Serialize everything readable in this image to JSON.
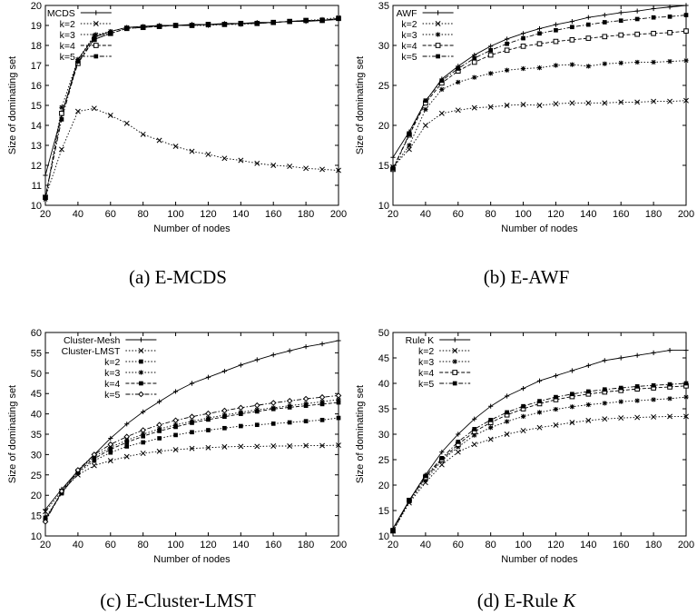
{
  "chart_data": [
    {
      "type": "line",
      "caption": "(a) E-MCDS",
      "caption_italic_suffix": "",
      "xlabel": "Number of nodes",
      "ylabel": "Size of dominating set",
      "xlim": [
        20,
        200
      ],
      "ylim": [
        10,
        20
      ],
      "xticks": [
        20,
        40,
        60,
        80,
        100,
        120,
        140,
        160,
        180,
        200
      ],
      "yticks": [
        10,
        11,
        12,
        13,
        14,
        15,
        16,
        17,
        18,
        19,
        20
      ],
      "x": [
        20,
        30,
        40,
        50,
        60,
        70,
        80,
        90,
        100,
        110,
        120,
        130,
        140,
        150,
        160,
        170,
        180,
        190,
        200
      ],
      "legend_position": "top-left",
      "series": [
        {
          "name": "MCDS",
          "marker": "plus",
          "dash": "solid",
          "values": [
            11.5,
            14.5,
            17.3,
            18.4,
            18.7,
            18.9,
            18.95,
            19.0,
            19.0,
            19.05,
            19.05,
            19.1,
            19.1,
            19.15,
            19.15,
            19.2,
            19.2,
            19.25,
            19.3
          ]
        },
        {
          "name": "k=2",
          "marker": "cross",
          "dash": "dot",
          "values": [
            10.4,
            12.8,
            14.7,
            14.85,
            14.5,
            14.1,
            13.55,
            13.25,
            12.95,
            12.7,
            12.55,
            12.35,
            12.25,
            12.1,
            12.0,
            11.95,
            11.85,
            11.8,
            11.75
          ]
        },
        {
          "name": "k=3",
          "marker": "star",
          "dash": "dot",
          "values": [
            10.3,
            14.9,
            17.3,
            18.5,
            18.7,
            18.9,
            18.95,
            18.95,
            19.0,
            19.0,
            19.0,
            19.05,
            19.05,
            19.1,
            19.15,
            19.2,
            19.25,
            19.3,
            19.4
          ]
        },
        {
          "name": "k=4",
          "marker": "square-open",
          "dash": "dash",
          "values": [
            10.4,
            14.6,
            17.1,
            18.3,
            18.6,
            18.85,
            18.9,
            18.95,
            19.0,
            19.0,
            19.05,
            19.05,
            19.1,
            19.1,
            19.15,
            19.2,
            19.25,
            19.25,
            19.35
          ]
        },
        {
          "name": "k=5",
          "marker": "square-filled",
          "dash": "dashdot",
          "values": [
            10.4,
            14.3,
            17.2,
            18.3,
            18.6,
            18.85,
            18.9,
            18.95,
            19.0,
            19.0,
            19.05,
            19.05,
            19.1,
            19.1,
            19.15,
            19.2,
            19.25,
            19.25,
            19.35
          ]
        }
      ]
    },
    {
      "type": "line",
      "caption": "(b) E-AWF",
      "caption_italic_suffix": "",
      "xlabel": "Number of nodes",
      "ylabel": "Size of dominating set",
      "xlim": [
        20,
        200
      ],
      "ylim": [
        10,
        35
      ],
      "xticks": [
        20,
        40,
        60,
        80,
        100,
        120,
        140,
        160,
        180,
        200
      ],
      "yticks": [
        10,
        15,
        20,
        25,
        30,
        35
      ],
      "x": [
        20,
        30,
        40,
        50,
        60,
        70,
        80,
        90,
        100,
        110,
        120,
        130,
        140,
        150,
        160,
        170,
        180,
        190,
        200
      ],
      "legend_position": "top-left",
      "series": [
        {
          "name": "AWF",
          "marker": "plus",
          "dash": "solid",
          "values": [
            16.0,
            19.2,
            23.0,
            25.8,
            27.4,
            28.8,
            29.9,
            30.8,
            31.5,
            32.1,
            32.6,
            33.0,
            33.5,
            33.8,
            34.1,
            34.3,
            34.6,
            34.8,
            35.0
          ]
        },
        {
          "name": "k=2",
          "marker": "cross",
          "dash": "dot",
          "values": [
            14.8,
            17.0,
            20.0,
            21.5,
            21.9,
            22.2,
            22.3,
            22.5,
            22.6,
            22.5,
            22.7,
            22.8,
            22.8,
            22.8,
            22.9,
            22.9,
            23.0,
            23.0,
            23.1
          ]
        },
        {
          "name": "k=3",
          "marker": "star",
          "dash": "dot",
          "values": [
            14.7,
            17.5,
            22.0,
            24.5,
            25.4,
            26.0,
            26.5,
            26.9,
            27.1,
            27.2,
            27.5,
            27.6,
            27.4,
            27.7,
            27.8,
            27.9,
            27.9,
            28.0,
            28.1
          ]
        },
        {
          "name": "k=4",
          "marker": "square-open",
          "dash": "dash",
          "values": [
            14.5,
            18.8,
            22.8,
            25.3,
            26.8,
            27.9,
            28.8,
            29.4,
            29.9,
            30.2,
            30.5,
            30.7,
            30.9,
            31.1,
            31.3,
            31.4,
            31.5,
            31.6,
            31.8
          ]
        },
        {
          "name": "k=5",
          "marker": "square-filled",
          "dash": "dashdot",
          "values": [
            14.6,
            18.9,
            23.1,
            25.6,
            27.1,
            28.4,
            29.4,
            30.2,
            30.9,
            31.5,
            31.9,
            32.3,
            32.6,
            32.9,
            33.1,
            33.3,
            33.5,
            33.6,
            33.8
          ]
        }
      ]
    },
    {
      "type": "line",
      "caption": "(c) E-Cluster-LMST",
      "caption_italic_suffix": "",
      "xlabel": "Number of nodes",
      "ylabel": "Size of dominating set",
      "xlim": [
        20,
        200
      ],
      "ylim": [
        10,
        60
      ],
      "xticks": [
        20,
        40,
        60,
        80,
        100,
        120,
        140,
        160,
        180,
        200
      ],
      "yticks": [
        10,
        15,
        20,
        25,
        30,
        35,
        40,
        45,
        50,
        55,
        60
      ],
      "x": [
        20,
        30,
        40,
        50,
        60,
        70,
        80,
        90,
        100,
        110,
        120,
        130,
        140,
        150,
        160,
        170,
        180,
        190,
        200
      ],
      "legend_position": "top-left",
      "series": [
        {
          "name": "Cluster-Mesh",
          "marker": "plus",
          "dash": "solid",
          "values": [
            16.5,
            21.5,
            26.0,
            30.0,
            34.0,
            37.5,
            40.5,
            43.0,
            45.5,
            47.5,
            49.0,
            50.5,
            52.0,
            53.3,
            54.5,
            55.5,
            56.5,
            57.2,
            58.0
          ]
        },
        {
          "name": "Cluster-LMST",
          "marker": "cross",
          "dash": "dot",
          "values": [
            16.0,
            21.0,
            25.0,
            27.3,
            28.5,
            29.5,
            30.3,
            30.8,
            31.2,
            31.5,
            31.7,
            31.9,
            32.0,
            32.0,
            32.1,
            32.1,
            32.2,
            32.2,
            32.3
          ]
        },
        {
          "name": "k=2",
          "marker": "square-filled",
          "dash": "dot",
          "values": [
            14.5,
            20.5,
            25.5,
            28.5,
            30.5,
            32.0,
            33.0,
            34.0,
            34.8,
            35.5,
            36.0,
            36.5,
            37.0,
            37.3,
            37.6,
            37.9,
            38.2,
            38.5,
            39.0
          ]
        },
        {
          "name": "k=3",
          "marker": "star",
          "dash": "dot",
          "values": [
            14.0,
            20.8,
            26.0,
            29.5,
            31.8,
            33.5,
            35.0,
            36.3,
            37.3,
            38.2,
            39.0,
            39.7,
            40.4,
            41.0,
            41.5,
            42.0,
            42.5,
            43.0,
            43.5
          ]
        },
        {
          "name": "k=4",
          "marker": "square-filled",
          "dash": "dash",
          "values": [
            14.0,
            20.5,
            25.8,
            29.0,
            31.3,
            33.0,
            34.5,
            35.8,
            36.8,
            37.8,
            38.6,
            39.3,
            40.0,
            40.6,
            41.2,
            41.6,
            42.0,
            42.4,
            42.8
          ]
        },
        {
          "name": "k=5",
          "marker": "diamond-open",
          "dash": "dashdot",
          "values": [
            13.5,
            21.0,
            26.2,
            30.0,
            32.5,
            34.4,
            36.0,
            37.3,
            38.4,
            39.3,
            40.1,
            40.8,
            41.5,
            42.1,
            42.7,
            43.2,
            43.7,
            44.1,
            44.5
          ]
        }
      ]
    },
    {
      "type": "line",
      "caption": "(d) E-Rule ",
      "caption_italic_suffix": "K",
      "xlabel": "Number of nodes",
      "ylabel": "Size of dominating set",
      "xlim": [
        20,
        200
      ],
      "ylim": [
        10,
        50
      ],
      "xticks": [
        20,
        40,
        60,
        80,
        100,
        120,
        140,
        160,
        180,
        200
      ],
      "yticks": [
        10,
        15,
        20,
        25,
        30,
        35,
        40,
        45,
        50
      ],
      "x": [
        20,
        30,
        40,
        50,
        60,
        70,
        80,
        90,
        100,
        110,
        120,
        130,
        140,
        150,
        160,
        170,
        180,
        190,
        200
      ],
      "legend_position": "top-left",
      "series": [
        {
          "name": "Rule K",
          "marker": "plus",
          "dash": "solid",
          "values": [
            11.5,
            17.0,
            22.0,
            26.5,
            30.0,
            33.0,
            35.5,
            37.5,
            39.0,
            40.5,
            41.5,
            42.5,
            43.5,
            44.5,
            45.0,
            45.5,
            46.0,
            46.5,
            46.5
          ]
        },
        {
          "name": "k=2",
          "marker": "cross",
          "dash": "dot",
          "values": [
            11.0,
            16.5,
            20.5,
            24.0,
            26.5,
            28.0,
            29.0,
            30.0,
            30.7,
            31.3,
            31.8,
            32.3,
            32.7,
            33.0,
            33.2,
            33.3,
            33.4,
            33.5,
            33.5
          ]
        },
        {
          "name": "k=3",
          "marker": "star",
          "dash": "dot",
          "values": [
            11.0,
            16.8,
            21.0,
            24.8,
            27.5,
            29.8,
            31.3,
            32.5,
            33.5,
            34.3,
            34.9,
            35.4,
            35.8,
            36.1,
            36.4,
            36.6,
            36.8,
            37.0,
            37.3
          ]
        },
        {
          "name": "k=4",
          "marker": "square-open",
          "dash": "dash",
          "values": [
            11.0,
            17.0,
            21.5,
            25.0,
            28.0,
            30.5,
            32.3,
            33.8,
            35.0,
            36.0,
            36.8,
            37.4,
            37.9,
            38.3,
            38.6,
            38.9,
            39.1,
            39.3,
            39.5
          ]
        },
        {
          "name": "k=5",
          "marker": "square-filled",
          "dash": "dashdot",
          "values": [
            11.0,
            17.0,
            21.8,
            25.3,
            28.5,
            31.0,
            32.8,
            34.3,
            35.5,
            36.5,
            37.3,
            37.9,
            38.4,
            38.8,
            39.1,
            39.4,
            39.6,
            39.8,
            40.0
          ]
        }
      ]
    }
  ]
}
